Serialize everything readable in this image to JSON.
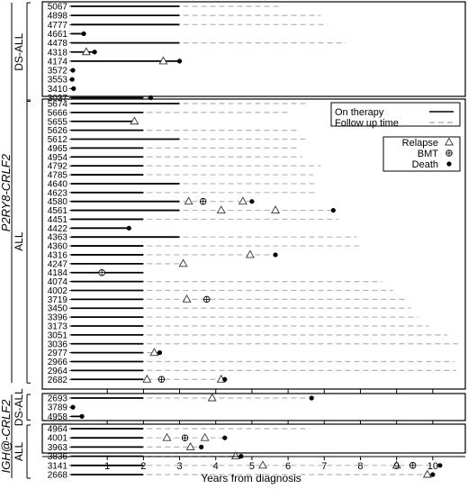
{
  "chart_data": {
    "type": "timeline",
    "xlabel": "Years from diagnosis",
    "xlim": [
      0,
      10.9
    ],
    "xticks": [
      1,
      2,
      3,
      4,
      5,
      6,
      7,
      8,
      9,
      10
    ],
    "legend": {
      "line_items": [
        {
          "label": "On therapy",
          "style": "solid"
        },
        {
          "label": "Follow up time",
          "style": "dashed"
        }
      ],
      "marker_items": [
        {
          "label": "Relapse",
          "marker": "triangle"
        },
        {
          "label": "BMT",
          "marker": "circle-plus"
        },
        {
          "label": "Death",
          "marker": "dot"
        }
      ]
    },
    "groups": [
      {
        "label": "P2RY8-CRLF2",
        "subgroups": [
          {
            "label": "DS-ALL",
            "patients": [
              {
                "id": "5067",
                "therapy": 3.0,
                "followup": 5.85,
                "events": []
              },
              {
                "id": "4898",
                "therapy": 3.0,
                "followup": 6.9,
                "events": []
              },
              {
                "id": "4777",
                "therapy": 3.0,
                "followup": 7.1,
                "events": []
              },
              {
                "id": "4661",
                "therapy": 0.35,
                "followup": 0.35,
                "events": [
                  {
                    "type": "death",
                    "t": 0.35
                  }
                ]
              },
              {
                "id": "4478",
                "therapy": 3.0,
                "followup": 7.6,
                "events": []
              },
              {
                "id": "4318",
                "therapy": 0.65,
                "followup": 0.65,
                "events": [
                  {
                    "type": "relapse",
                    "t": 0.42
                  },
                  {
                    "type": "death",
                    "t": 0.65
                  }
                ]
              },
              {
                "id": "4174",
                "therapy": 3.0,
                "followup": 3.0,
                "events": [
                  {
                    "type": "relapse",
                    "t": 2.55
                  },
                  {
                    "type": "death",
                    "t": 3.0
                  }
                ]
              },
              {
                "id": "3572",
                "therapy": 0.05,
                "followup": 0.05,
                "events": [
                  {
                    "type": "death",
                    "t": 0.05
                  }
                ]
              },
              {
                "id": "3553",
                "therapy": 0.03,
                "followup": 0.03,
                "events": [
                  {
                    "type": "death",
                    "t": 0.03
                  }
                ]
              },
              {
                "id": "3410",
                "therapy": 0.07,
                "followup": 0.07,
                "events": [
                  {
                    "type": "death",
                    "t": 0.07
                  }
                ]
              },
              {
                "id": "3037",
                "therapy": 2.0,
                "followup": 2.2,
                "events": [
                  {
                    "type": "death",
                    "t": 2.2
                  }
                ]
              }
            ]
          },
          {
            "label": "ALL",
            "patients": [
              {
                "id": "5674",
                "therapy": 3.0,
                "followup": 6.5,
                "events": []
              },
              {
                "id": "5666",
                "therapy": 2.0,
                "followup": 6.0,
                "events": []
              },
              {
                "id": "5655",
                "therapy": 1.8,
                "followup": 1.8,
                "events": [
                  {
                    "type": "relapse",
                    "t": 1.75
                  }
                ]
              },
              {
                "id": "5626",
                "therapy": 2.0,
                "followup": 6.3,
                "events": []
              },
              {
                "id": "5612",
                "therapy": 3.0,
                "followup": 6.5,
                "events": []
              },
              {
                "id": "4965",
                "therapy": 2.0,
                "followup": 6.3,
                "events": []
              },
              {
                "id": "4954",
                "therapy": 2.0,
                "followup": 6.4,
                "events": []
              },
              {
                "id": "4792",
                "therapy": 2.0,
                "followup": 6.9,
                "events": []
              },
              {
                "id": "4785",
                "therapy": 2.0,
                "followup": 6.7,
                "events": []
              },
              {
                "id": "4640",
                "therapy": 3.0,
                "followup": 6.8,
                "events": []
              },
              {
                "id": "4623",
                "therapy": 2.0,
                "followup": 6.8,
                "events": []
              },
              {
                "id": "4580",
                "therapy": 3.0,
                "followup": 5.0,
                "events": [
                  {
                    "type": "relapse",
                    "t": 3.25
                  },
                  {
                    "type": "bmt",
                    "t": 3.65
                  },
                  {
                    "type": "relapse",
                    "t": 4.75
                  },
                  {
                    "type": "death",
                    "t": 5.0
                  }
                ]
              },
              {
                "id": "4561",
                "therapy": 3.0,
                "followup": 7.25,
                "events": [
                  {
                    "type": "relapse",
                    "t": 4.15
                  },
                  {
                    "type": "relapse",
                    "t": 5.65
                  },
                  {
                    "type": "death",
                    "t": 7.25
                  }
                ]
              },
              {
                "id": "4451",
                "therapy": 2.0,
                "followup": 7.4,
                "events": []
              },
              {
                "id": "4422",
                "therapy": 1.6,
                "followup": 1.6,
                "events": [
                  {
                    "type": "death",
                    "t": 1.6
                  }
                ]
              },
              {
                "id": "4363",
                "therapy": 3.0,
                "followup": 7.9,
                "events": []
              },
              {
                "id": "4360",
                "therapy": 2.0,
                "followup": 8.0,
                "events": []
              },
              {
                "id": "4316",
                "therapy": 2.0,
                "followup": 5.65,
                "events": [
                  {
                    "type": "relapse",
                    "t": 4.95
                  },
                  {
                    "type": "death",
                    "t": 5.65
                  }
                ]
              },
              {
                "id": "4247",
                "therapy": 2.0,
                "followup": 3.1,
                "events": [
                  {
                    "type": "relapse",
                    "t": 3.1
                  }
                ]
              },
              {
                "id": "4184",
                "therapy": 2.0,
                "followup": 2.0,
                "events": [
                  {
                    "type": "bmt",
                    "t": 0.85
                  }
                ]
              },
              {
                "id": "4074",
                "therapy": 2.0,
                "followup": 8.6,
                "events": []
              },
              {
                "id": "4002",
                "therapy": 2.0,
                "followup": 8.9,
                "events": []
              },
              {
                "id": "3719",
                "therapy": 2.0,
                "followup": 9.3,
                "events": [
                  {
                    "type": "relapse",
                    "t": 3.2
                  },
                  {
                    "type": "bmt",
                    "t": 3.75
                  }
                ]
              },
              {
                "id": "3450",
                "therapy": 2.0,
                "followup": 9.4,
                "events": []
              },
              {
                "id": "3396",
                "therapy": 2.0,
                "followup": 9.6,
                "events": []
              },
              {
                "id": "3173",
                "therapy": 2.0,
                "followup": 9.9,
                "events": []
              },
              {
                "id": "3051",
                "therapy": 2.0,
                "followup": 10.4,
                "events": []
              },
              {
                "id": "3036",
                "therapy": 2.0,
                "followup": 10.7,
                "events": []
              },
              {
                "id": "2977",
                "therapy": 2.0,
                "followup": 2.45,
                "events": [
                  {
                    "type": "relapse",
                    "t": 2.3
                  },
                  {
                    "type": "death",
                    "t": 2.45
                  }
                ]
              },
              {
                "id": "2966",
                "therapy": 2.0,
                "followup": 10.6,
                "events": []
              },
              {
                "id": "2964",
                "therapy": 2.0,
                "followup": 10.65,
                "events": []
              },
              {
                "id": "2682",
                "therapy": 2.0,
                "followup": 4.25,
                "events": [
                  {
                    "type": "relapse",
                    "t": 2.1
                  },
                  {
                    "type": "bmt",
                    "t": 2.5
                  },
                  {
                    "type": "relapse",
                    "t": 4.15
                  },
                  {
                    "type": "death",
                    "t": 4.25
                  }
                ]
              }
            ]
          }
        ]
      },
      {
        "label": "IGH@-CRLF2",
        "subgroups": [
          {
            "label": "DS-ALL",
            "patients": [
              {
                "id": "2693",
                "therapy": 2.0,
                "followup": 6.65,
                "events": [
                  {
                    "type": "relapse",
                    "t": 3.9
                  },
                  {
                    "type": "death",
                    "t": 6.65
                  }
                ]
              },
              {
                "id": "3789",
                "therapy": 0.05,
                "followup": 0.05,
                "events": [
                  {
                    "type": "death",
                    "t": 0.05
                  }
                ]
              },
              {
                "id": "4958",
                "therapy": 0.3,
                "followup": 0.3,
                "events": [
                  {
                    "type": "death",
                    "t": 0.3
                  }
                ]
              }
            ]
          },
          {
            "label": "ALL",
            "patients": [
              {
                "id": "4964",
                "therapy": 2.0,
                "followup": 6.6,
                "events": []
              },
              {
                "id": "4001",
                "therapy": 2.0,
                "followup": 4.25,
                "events": [
                  {
                    "type": "relapse",
                    "t": 2.65
                  },
                  {
                    "type": "bmt",
                    "t": 3.15
                  },
                  {
                    "type": "relapse",
                    "t": 3.7
                  },
                  {
                    "type": "death",
                    "t": 4.25
                  }
                ]
              },
              {
                "id": "3963",
                "therapy": 2.0,
                "followup": 3.6,
                "events": [
                  {
                    "type": "relapse",
                    "t": 3.3
                  },
                  {
                    "type": "death",
                    "t": 3.6
                  }
                ]
              },
              {
                "id": "3836",
                "therapy": 2.0,
                "followup": 4.7,
                "events": [
                  {
                    "type": "relapse",
                    "t": 4.55
                  },
                  {
                    "type": "death",
                    "t": 4.7
                  }
                ]
              },
              {
                "id": "3141",
                "therapy": 2.0,
                "followup": 10.2,
                "events": [
                  {
                    "type": "relapse",
                    "t": 5.3
                  },
                  {
                    "type": "relapse",
                    "t": 9.0
                  },
                  {
                    "type": "bmt",
                    "t": 9.45
                  },
                  {
                    "type": "death",
                    "t": 10.2
                  }
                ]
              },
              {
                "id": "2668",
                "therapy": 2.0,
                "followup": 10.0,
                "events": [
                  {
                    "type": "relapse",
                    "t": 9.85
                  },
                  {
                    "type": "death",
                    "t": 10.0
                  }
                ]
              }
            ]
          }
        ]
      }
    ]
  }
}
